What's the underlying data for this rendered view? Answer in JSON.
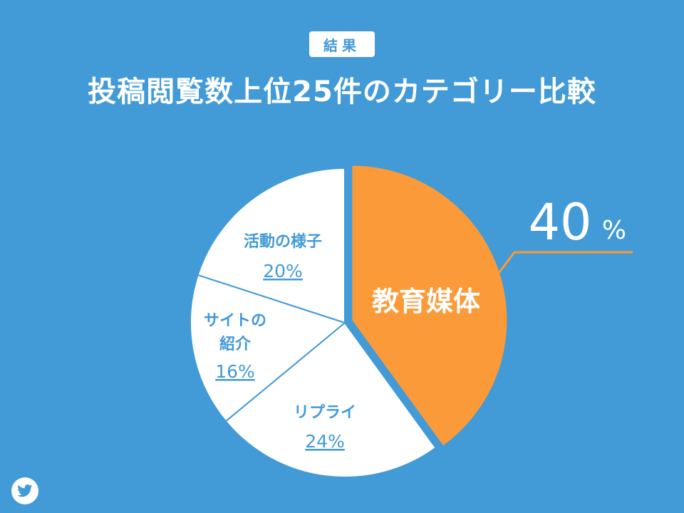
{
  "header": {
    "badge": "結果",
    "title": "投稿閲覧数上位25件のカテゴリー比較"
  },
  "chart_data": {
    "type": "pie",
    "title": "投稿閲覧数上位25件のカテゴリー比較",
    "start_angle_deg": 0,
    "direction": "clockwise",
    "slices": [
      {
        "name": "教育媒体",
        "value": 40,
        "label": "40",
        "unit": "%",
        "color": "#fb9a38",
        "exploded": true
      },
      {
        "name": "リプライ",
        "value": 24,
        "label": "24%",
        "color": "#ffffff"
      },
      {
        "name": "サイトの紹介",
        "lines": [
          "サイトの",
          "紹介"
        ],
        "value": 16,
        "label": "16%",
        "color": "#ffffff"
      },
      {
        "name": "活動の様子",
        "value": 20,
        "label": "20%",
        "color": "#ffffff"
      }
    ],
    "colors": {
      "background": "#429ad7",
      "accent": "#fb9a38",
      "label": "#429ad7",
      "callout_text": "#ffffff"
    }
  },
  "footer": {
    "icon": "twitter-bird-icon"
  }
}
